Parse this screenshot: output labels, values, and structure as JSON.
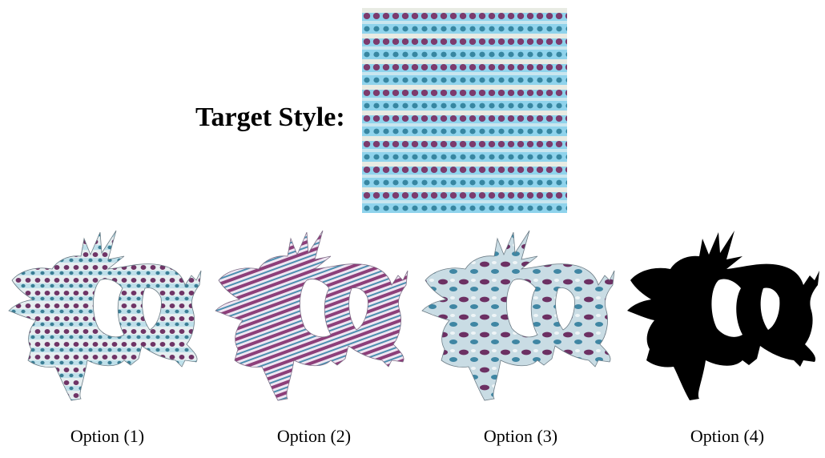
{
  "target": {
    "label": "Target Style:"
  },
  "options": [
    {
      "label": "Option (1)"
    },
    {
      "label": "Option (2)"
    },
    {
      "label": "Option (3)"
    },
    {
      "label": "Option (4)"
    }
  ],
  "colors": {
    "light_blue": "#8fd3ec",
    "white_band": "#e9ece4",
    "purple_dot": "#7a2e62",
    "teal_dot": "#2f7f9a",
    "silhouette": "#000000"
  }
}
